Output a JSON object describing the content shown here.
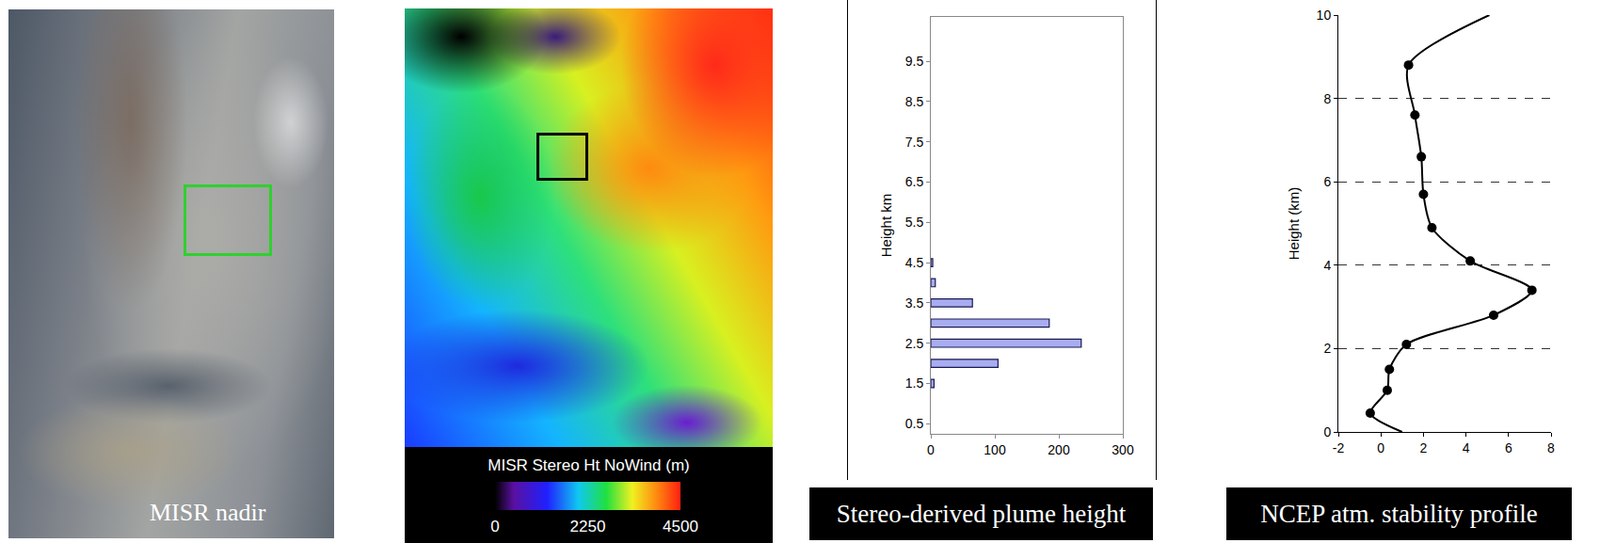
{
  "images": [
    {
      "label": "MISR nadir",
      "box_color": "#2fd02f"
    },
    {
      "box_color": "#000000",
      "colorbar": {
        "title": "MISR Stereo Ht NoWind (m)",
        "range": [
          0,
          4500
        ],
        "ticks": [
          0,
          2250,
          4500
        ]
      }
    }
  ],
  "chart_data": [
    {
      "type": "bar",
      "orientation": "horizontal",
      "caption": "Stereo-derived plume height",
      "y_label": "Height km",
      "y": [
        1.5,
        2.0,
        2.5,
        3.0,
        3.5,
        4.0,
        4.5
      ],
      "values": [
        5,
        105,
        235,
        185,
        65,
        7,
        3
      ],
      "color": "#a8acf0",
      "xlim": [
        0,
        300
      ],
      "xticks": [
        0,
        100,
        200,
        300
      ],
      "ylim": [
        0.25,
        10.6
      ],
      "yticks": [
        0.5,
        1.5,
        2.5,
        3.5,
        4.5,
        5.5,
        6.5,
        7.5,
        8.5,
        9.5
      ]
    },
    {
      "type": "line",
      "caption": "NCEP atm. stability profile",
      "y_label": "Height (km)",
      "grid": true,
      "xlim": [
        -2,
        8
      ],
      "xticks": [
        -2,
        0,
        2,
        4,
        6,
        8
      ],
      "ylim": [
        0,
        10
      ],
      "yticks": [
        0,
        2,
        4,
        6,
        8,
        10
      ],
      "series": [
        {
          "type": "line",
          "marker": "none",
          "line_style": "solid",
          "color": "#000000",
          "x": [
            1.0,
            -0.5,
            0.3,
            0.4,
            1.2,
            5.3,
            7.1,
            4.2,
            2.4,
            2.0,
            1.9,
            1.6,
            1.3,
            5.1
          ],
          "values": [
            0,
            0.45,
            1.0,
            1.5,
            2.1,
            2.8,
            3.4,
            4.1,
            4.9,
            5.7,
            6.6,
            7.6,
            8.8,
            10
          ]
        },
        {
          "type": "scatter",
          "marker": "circle",
          "line_style": "none",
          "color": "#000000",
          "x": [
            -0.5,
            0.3,
            0.4,
            1.2,
            5.3,
            7.1,
            4.2,
            2.4,
            2.0,
            1.9,
            1.6,
            1.3
          ],
          "values": [
            0.45,
            1.0,
            1.5,
            2.1,
            2.8,
            3.4,
            4.1,
            4.9,
            5.7,
            6.6,
            7.6,
            8.8
          ]
        }
      ]
    }
  ]
}
